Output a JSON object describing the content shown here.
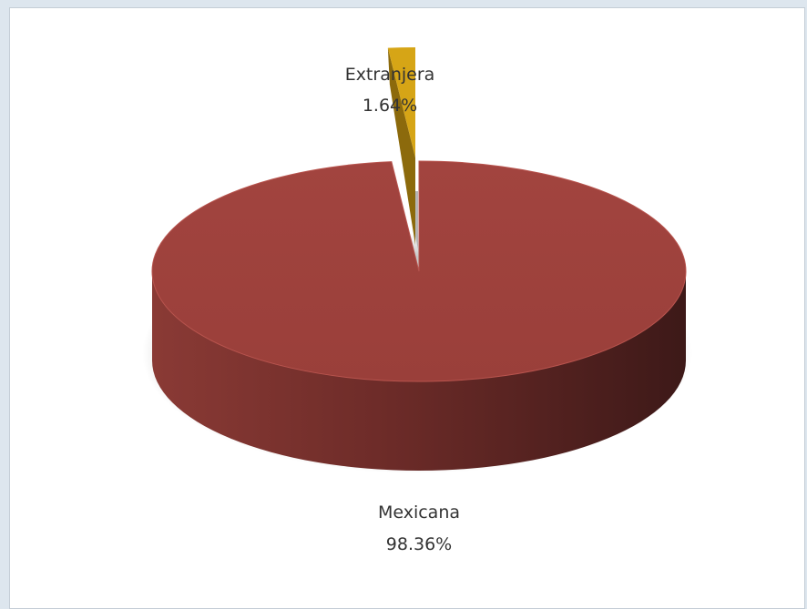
{
  "chart_data": {
    "type": "pie",
    "style": "3d",
    "slices": [
      {
        "name": "Mexicana",
        "value": 98.36,
        "label": "98.36%",
        "color": "#9e413c"
      },
      {
        "name": "Extranjera",
        "value": 1.64,
        "label": "1.64%",
        "color": "#d6a516",
        "exploded": true
      }
    ],
    "title": "",
    "legend": "none"
  }
}
